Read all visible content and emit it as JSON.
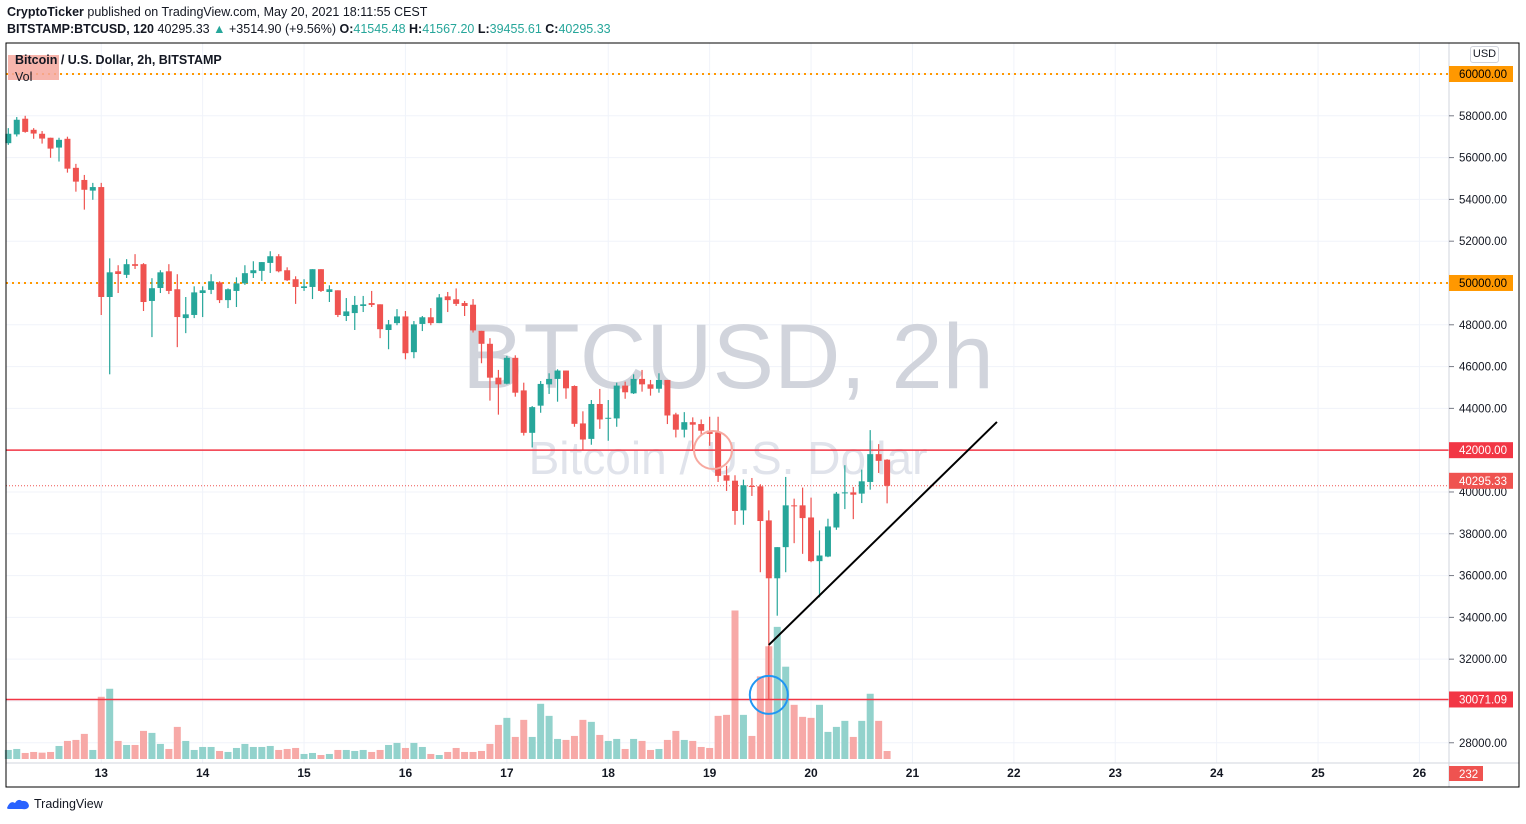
{
  "header": {
    "author": "CryptoTicker",
    "published": " published on TradingView.com, May 20, 2021 18:11:55 CEST",
    "symbol": "BITSTAMP:BTCUSD, 120",
    "last": "40295.33",
    "change_arrow": "▲",
    "change": "+3514.90 (+9.56%)",
    "o_label": "O:",
    "o": "41545.48",
    "h_label": "H:",
    "h": "41567.20",
    "l_label": "L:",
    "l": "39455.61",
    "c_label": "C:",
    "c": "40295.33"
  },
  "legend": {
    "title": "Bitcoin / U.S. Dollar, 2h, BITSTAMP",
    "vol": "Vol"
  },
  "currency_button": "USD",
  "footer": {
    "brand": "TradingView"
  },
  "colors": {
    "up": "#26a69a",
    "down": "#ef5350",
    "up_vol": "#92d2cc",
    "down_vol": "#f7a9a7",
    "orange": "#ff9800",
    "red_line": "#f23645"
  },
  "chart_data": {
    "type": "candlestick",
    "title": "Bitcoin / U.S. Dollar, 2h, BITSTAMP",
    "watermark": [
      "BTCUSD, 2h",
      "Bitcoin / U.S. Dollar"
    ],
    "ylim": [
      27500,
      61700
    ],
    "y_ticks": [
      "58000.00",
      "56000.00",
      "54000.00",
      "52000.00",
      "48000.00",
      "46000.00",
      "44000.00",
      "40000.00",
      "38000.00",
      "36000.00",
      "34000.00",
      "32000.00",
      "28000.00"
    ],
    "y_tick_values": [
      58000,
      56000,
      54000,
      52000,
      48000,
      46000,
      44000,
      40000,
      38000,
      36000,
      34000,
      32000,
      28000
    ],
    "x_labels": [
      "13",
      "14",
      "15",
      "16",
      "17",
      "18",
      "19",
      "20",
      "21",
      "22",
      "23",
      "24",
      "25",
      "26"
    ],
    "x_label_days": [
      13,
      14,
      15,
      16,
      17,
      18,
      19,
      20,
      21,
      22,
      23,
      24,
      25,
      26
    ],
    "candle_interval": "2h",
    "ohlc": [
      [
        56690,
        57410,
        56610,
        57140
      ],
      [
        57110,
        57940,
        57010,
        57810
      ],
      [
        57860,
        58000,
        57190,
        57230
      ],
      [
        57330,
        57410,
        56900,
        57150
      ],
      [
        57140,
        57270,
        56670,
        56910
      ],
      [
        56950,
        56950,
        55990,
        56430
      ],
      [
        56480,
        56950,
        55810,
        56850
      ],
      [
        56900,
        57000,
        55280,
        55470
      ],
      [
        55510,
        55700,
        54370,
        54850
      ],
      [
        54930,
        55170,
        53510,
        54460
      ],
      [
        54420,
        54790,
        53980,
        54590
      ],
      [
        54590,
        54790,
        48470,
        49330
      ],
      [
        49330,
        51180,
        45630,
        50510
      ],
      [
        50560,
        50850,
        49520,
        50430
      ],
      [
        50390,
        51140,
        50240,
        50900
      ],
      [
        50900,
        51380,
        50670,
        50820
      ],
      [
        50900,
        50950,
        48660,
        49090
      ],
      [
        49140,
        50230,
        47410,
        49750
      ],
      [
        49760,
        50610,
        49520,
        50510
      ],
      [
        50560,
        50900,
        49470,
        49620
      ],
      [
        49700,
        50420,
        46930,
        48370
      ],
      [
        48320,
        49330,
        47600,
        48500
      ],
      [
        48470,
        49840,
        48320,
        49550
      ],
      [
        49520,
        49840,
        48370,
        49650
      ],
      [
        49670,
        50420,
        49470,
        50080
      ],
      [
        50030,
        50080,
        49040,
        49180
      ],
      [
        49180,
        49740,
        48800,
        49700
      ],
      [
        49620,
        50270,
        48850,
        49980
      ],
      [
        49980,
        50850,
        49910,
        50470
      ],
      [
        50470,
        51040,
        50240,
        50610
      ],
      [
        50580,
        51000,
        50100,
        51000
      ],
      [
        50960,
        51520,
        50480,
        51280
      ],
      [
        51280,
        51380,
        50510,
        50560
      ],
      [
        50610,
        50750,
        50100,
        50130
      ],
      [
        50180,
        50320,
        49000,
        49810
      ],
      [
        49760,
        50180,
        49620,
        49840
      ],
      [
        49810,
        50660,
        49230,
        50660
      ],
      [
        50660,
        50660,
        49570,
        49620
      ],
      [
        49570,
        49890,
        49090,
        49700
      ],
      [
        49650,
        49650,
        48370,
        48470
      ],
      [
        48420,
        49280,
        48180,
        48640
      ],
      [
        48560,
        49380,
        47750,
        48950
      ],
      [
        48900,
        49380,
        48610,
        48980
      ],
      [
        49040,
        49620,
        48850,
        48950
      ],
      [
        48980,
        48980,
        47360,
        47790
      ],
      [
        47750,
        48230,
        46830,
        48020
      ],
      [
        48080,
        48750,
        47980,
        48400
      ],
      [
        48400,
        48660,
        46350,
        46640
      ],
      [
        46690,
        48180,
        46400,
        48020
      ],
      [
        48040,
        48420,
        47700,
        48360
      ],
      [
        48360,
        48800,
        47980,
        48080
      ],
      [
        48080,
        49470,
        48080,
        49310
      ],
      [
        49360,
        49570,
        48610,
        49180
      ],
      [
        49220,
        49740,
        48900,
        49000
      ],
      [
        49040,
        49140,
        48420,
        48900
      ],
      [
        48960,
        49230,
        47630,
        47730
      ],
      [
        47710,
        47710,
        46160,
        47090
      ],
      [
        47090,
        47360,
        44370,
        45470
      ],
      [
        45470,
        45840,
        43700,
        45150
      ],
      [
        45180,
        46510,
        45150,
        46420
      ],
      [
        46420,
        46540,
        44560,
        44750
      ],
      [
        44860,
        45230,
        42700,
        42830
      ],
      [
        42830,
        44110,
        42130,
        44060
      ],
      [
        44130,
        45310,
        43790,
        45170
      ],
      [
        45150,
        45680,
        44690,
        45410
      ],
      [
        45410,
        45870,
        44320,
        45810
      ],
      [
        45810,
        45810,
        44460,
        44960
      ],
      [
        45070,
        45100,
        43120,
        43260
      ],
      [
        43280,
        43860,
        42030,
        42510
      ],
      [
        42540,
        44400,
        42260,
        44210
      ],
      [
        44210,
        44930,
        43020,
        43470
      ],
      [
        43520,
        44400,
        42450,
        43550
      ],
      [
        43520,
        45230,
        43120,
        45090
      ],
      [
        45090,
        45280,
        44460,
        44770
      ],
      [
        44720,
        45630,
        44690,
        45410
      ],
      [
        45410,
        45840,
        44800,
        45150
      ],
      [
        45150,
        45360,
        44610,
        44940
      ],
      [
        44940,
        45680,
        44750,
        45360
      ],
      [
        45360,
        45360,
        43250,
        43660
      ],
      [
        43710,
        43790,
        42610,
        42980
      ],
      [
        42980,
        43820,
        42610,
        43340
      ],
      [
        43340,
        43570,
        42030,
        43220
      ],
      [
        43250,
        43470,
        42690,
        42930
      ],
      [
        42930,
        43600,
        42210,
        42780
      ],
      [
        42850,
        43600,
        40480,
        40770
      ],
      [
        40800,
        41250,
        40050,
        40540
      ],
      [
        40540,
        40800,
        38430,
        39090
      ],
      [
        39120,
        40590,
        38430,
        40320
      ],
      [
        40290,
        40670,
        39810,
        40240
      ],
      [
        40270,
        40370,
        36160,
        38610
      ],
      [
        38640,
        39120,
        30071,
        35870
      ],
      [
        35870,
        37360,
        34080,
        37360
      ],
      [
        37360,
        40720,
        36160,
        39360
      ],
      [
        39360,
        39680,
        37550,
        39330
      ],
      [
        39360,
        40210,
        37040,
        38750
      ],
      [
        38780,
        39730,
        36640,
        36690
      ],
      [
        36690,
        38160,
        34960,
        36960
      ],
      [
        36910,
        38720,
        36880,
        38350
      ],
      [
        38300,
        40000,
        38190,
        39920
      ],
      [
        39950,
        41280,
        39180,
        39980
      ],
      [
        39980,
        40240,
        38700,
        39870
      ],
      [
        39920,
        41070,
        39470,
        40510
      ],
      [
        40480,
        42960,
        40110,
        41810
      ],
      [
        41810,
        42290,
        40910,
        41490
      ],
      [
        41545.48,
        41567.2,
        39455.61,
        40295.33
      ]
    ],
    "volume": [
      262,
      291,
      175,
      204,
      184,
      204,
      378,
      524,
      553,
      728,
      262,
      1804,
      2037,
      524,
      407,
      407,
      815,
      757,
      437,
      291,
      931,
      524,
      262,
      349,
      349,
      233,
      204,
      320,
      437,
      349,
      349,
      378,
      262,
      291,
      320,
      146,
      175,
      116,
      146,
      262,
      262,
      233,
      262,
      204,
      262,
      407,
      466,
      320,
      466,
      349,
      146,
      116,
      204,
      320,
      204,
      204,
      233,
      437,
      989,
      1193,
      640,
      1135,
      640,
      1601,
      1251,
      582,
      553,
      669,
      1135,
      1077,
      698,
      524,
      582,
      291,
      582,
      524,
      262,
      291,
      553,
      815,
      553,
      524,
      349,
      320,
      1251,
      1280,
      4307,
      1280,
      669,
      2396,
      3269,
      3832,
      2677,
      1571,
      1222,
      1193,
      1571,
      786,
      931,
      1106,
      640,
      1106,
      1892,
      1106,
      232
    ],
    "last_volume_label": "232",
    "levels": [
      {
        "price": 60000,
        "label": "60000.00",
        "style": "dotted",
        "color": "#ff9800"
      },
      {
        "price": 50000,
        "label": "50000.00",
        "style": "dotted",
        "color": "#ff9800"
      },
      {
        "price": 42000,
        "label": "42000.00",
        "style": "solid",
        "color": "#f23645"
      },
      {
        "price": 30071.09,
        "label": "30071.09",
        "style": "solid",
        "color": "#f23645"
      }
    ],
    "last_price": {
      "price": 40295.33,
      "label": "40295.33"
    },
    "trendline": {
      "from": [
        90,
        32680
      ],
      "to": [
        117,
        43350
      ]
    },
    "circles": [
      {
        "index": 83.4,
        "price": 42010,
        "color": "#f7a9a0"
      },
      {
        "index": 90,
        "price": 30290,
        "color": "#2196f3"
      }
    ]
  }
}
